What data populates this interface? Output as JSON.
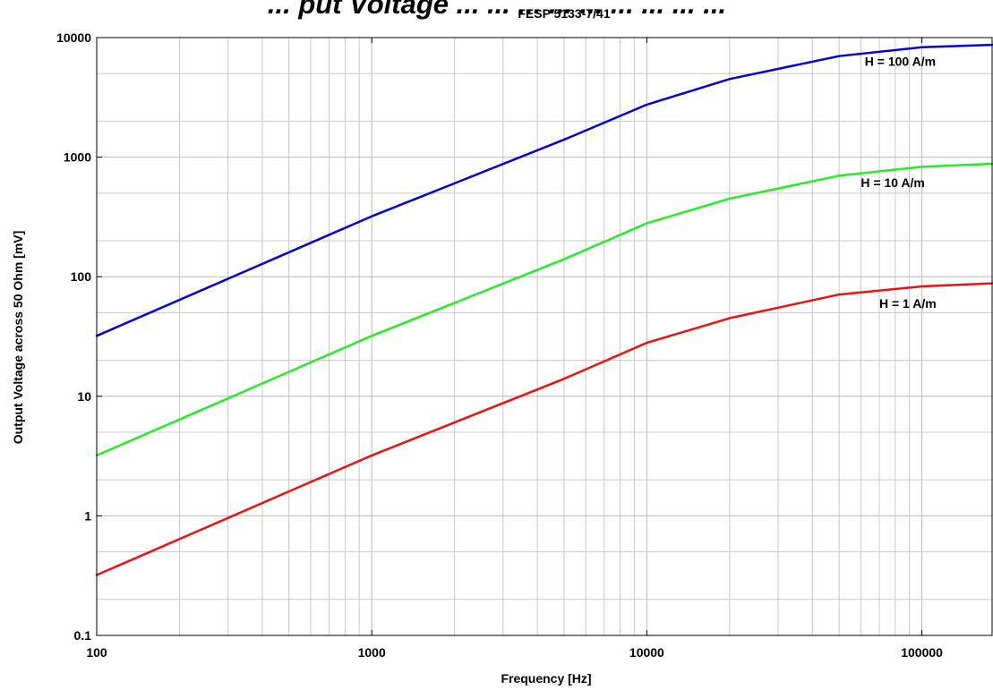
{
  "chart_data": {
    "type": "line",
    "title": "... put Voltage ... ... ... ... ... ... ... ... ...",
    "subtitle": "FESP 5133-7/41",
    "xlabel": "Frequency [Hz]",
    "ylabel": "Output Voltage across 50 Ohm [mV]",
    "xscale": "log",
    "yscale": "log",
    "xlim": [
      100,
      180000
    ],
    "ylim": [
      0.1,
      10000
    ],
    "grid": true,
    "x_ticks": [
      {
        "value": 100,
        "label": "100"
      },
      {
        "value": 1000,
        "label": "1000"
      },
      {
        "value": 10000,
        "label": "10000"
      },
      {
        "value": 100000,
        "label": "100000"
      }
    ],
    "y_ticks": [
      {
        "value": 0.1,
        "label": "0.1"
      },
      {
        "value": 1,
        "label": "1"
      },
      {
        "value": 10,
        "label": "10"
      },
      {
        "value": 100,
        "label": "100"
      },
      {
        "value": 1000,
        "label": "1000"
      },
      {
        "value": 10000,
        "label": "10000"
      }
    ],
    "series": [
      {
        "name": "H = 100 A/m",
        "color": "#0000dd",
        "x": [
          100,
          500,
          1000,
          5000,
          10000,
          20000,
          50000,
          100000,
          180000
        ],
        "y": [
          32,
          160,
          320,
          1400,
          2750,
          4500,
          7000,
          8300,
          8700
        ]
      },
      {
        "name": "H = 10 A/m",
        "color": "#22ee22",
        "x": [
          100,
          500,
          1000,
          5000,
          10000,
          20000,
          50000,
          100000,
          180000
        ],
        "y": [
          3.2,
          16,
          32,
          140,
          280,
          450,
          700,
          830,
          880
        ]
      },
      {
        "name": "H = 1 A/m",
        "color": "#ee1111",
        "x": [
          100,
          500,
          1000,
          5000,
          10000,
          20000,
          50000,
          100000,
          180000
        ],
        "y": [
          0.32,
          1.6,
          3.2,
          14,
          28,
          45,
          71,
          83,
          88
        ]
      }
    ],
    "annotations": [
      {
        "text": "H = 100 A/m",
        "x": 62000,
        "y": 5800,
        "series": 0
      },
      {
        "text": "H = 10 A/m",
        "x": 60000,
        "y": 560,
        "series": 1
      },
      {
        "text": "H = 1 A/m",
        "x": 70000,
        "y": 55,
        "series": 2
      }
    ]
  }
}
